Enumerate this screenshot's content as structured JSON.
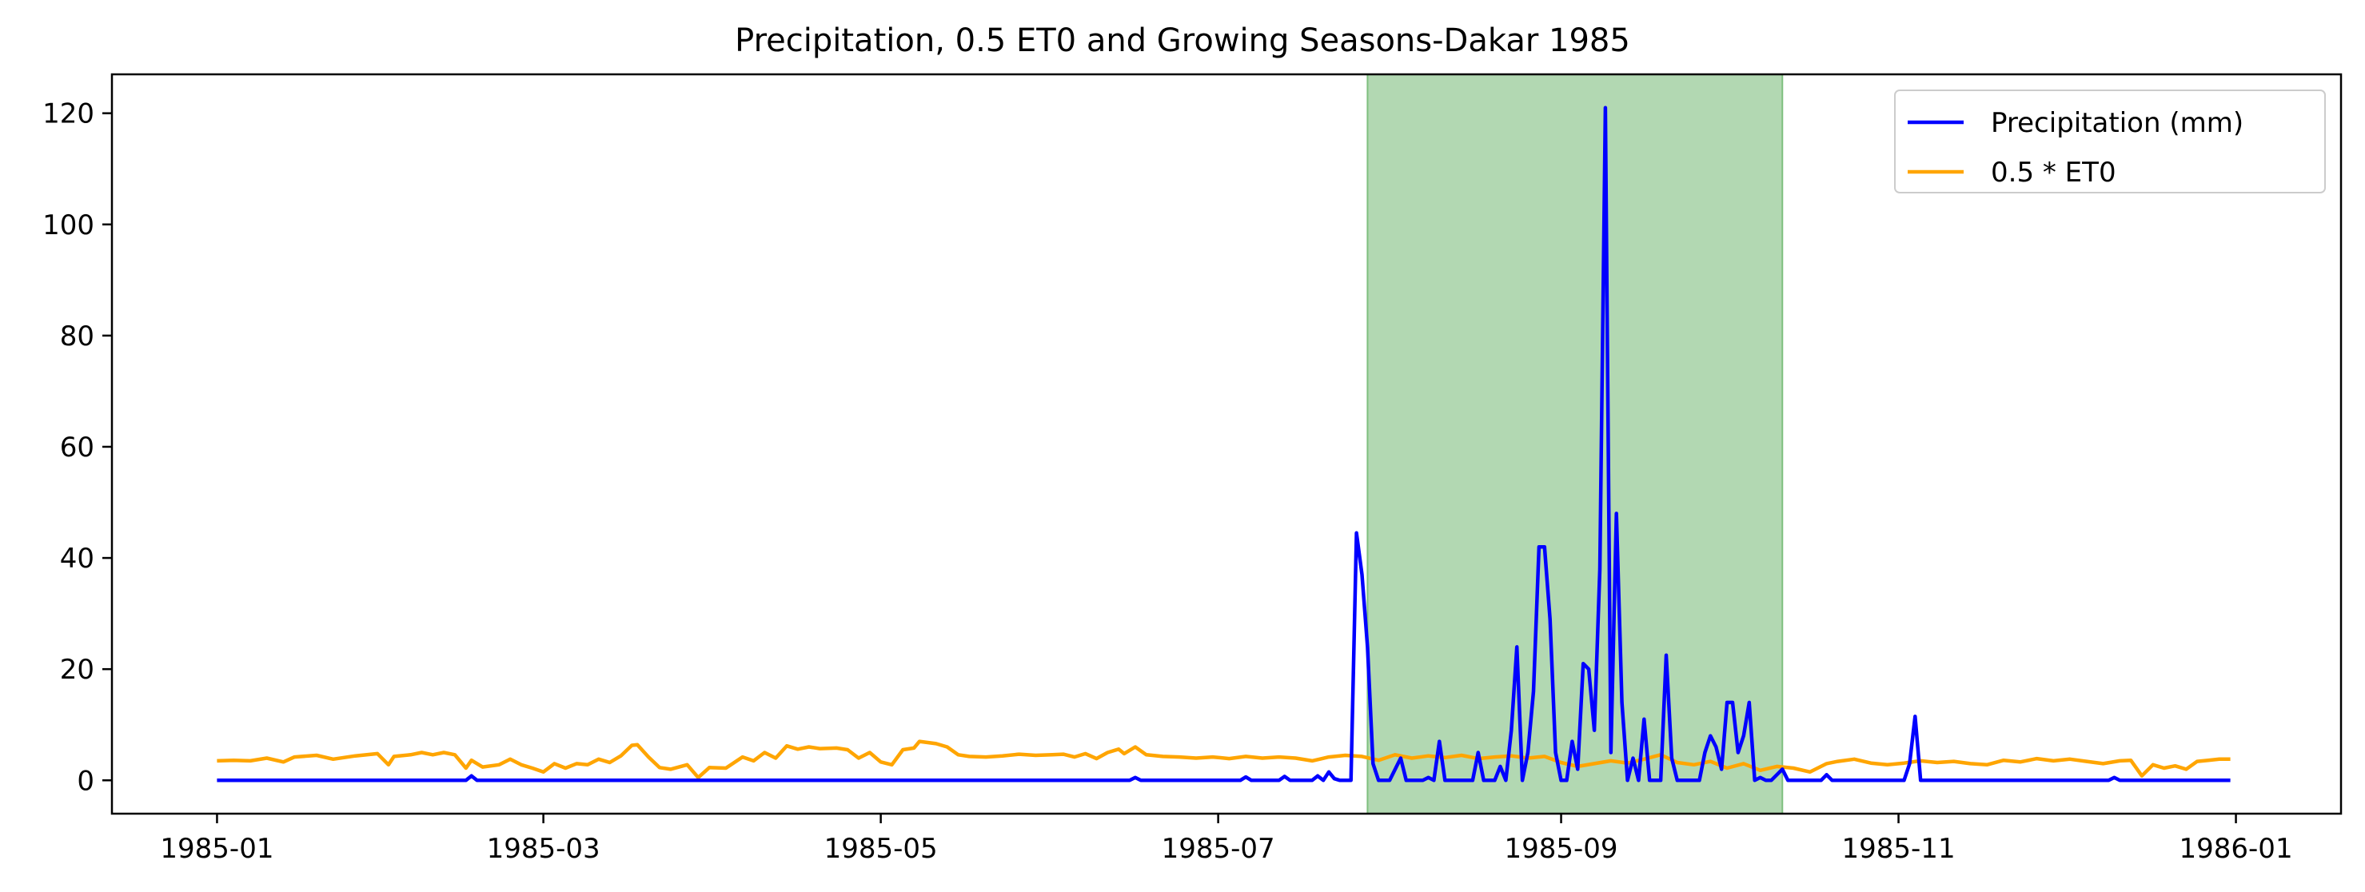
{
  "chart_data": {
    "type": "line",
    "title": "Precipitation, 0.5 ET0 and Growing Seasons-Dakar 1985",
    "xlabel": "",
    "ylabel": "",
    "x_range": [
      "1984-12-13",
      "1986-01-20"
    ],
    "ylim": [
      -6,
      127
    ],
    "x_ticks": [
      "1985-01",
      "1985-03",
      "1985-05",
      "1985-07",
      "1985-09",
      "1985-11",
      "1986-01"
    ],
    "y_ticks": [
      0,
      20,
      40,
      60,
      80,
      100,
      120
    ],
    "grid": false,
    "legend_position": "top-right",
    "growing_seasons": [
      {
        "start": "1985-07-28",
        "end": "1985-10-11",
        "color": "#b2d8b2",
        "edge_color": "#7fbf7f"
      }
    ],
    "series": [
      {
        "name": "Precipitation (mm)",
        "color": "#0000ff",
        "points": [
          [
            "1985-01-01",
            0
          ],
          [
            "1985-02-15",
            0
          ],
          [
            "1985-02-16",
            0.8
          ],
          [
            "1985-02-17",
            0
          ],
          [
            "1985-06-15",
            0
          ],
          [
            "1985-06-16",
            0.5
          ],
          [
            "1985-06-17",
            0
          ],
          [
            "1985-07-05",
            0
          ],
          [
            "1985-07-06",
            0.6
          ],
          [
            "1985-07-07",
            0
          ],
          [
            "1985-07-12",
            0
          ],
          [
            "1985-07-13",
            0.7
          ],
          [
            "1985-07-14",
            0
          ],
          [
            "1985-07-18",
            0
          ],
          [
            "1985-07-19",
            0.8
          ],
          [
            "1985-07-20",
            0
          ],
          [
            "1985-07-21",
            1.5
          ],
          [
            "1985-07-22",
            0.3
          ],
          [
            "1985-07-23",
            0
          ],
          [
            "1985-07-25",
            0
          ],
          [
            "1985-07-26",
            44.5
          ],
          [
            "1985-07-27",
            37
          ],
          [
            "1985-07-28",
            24
          ],
          [
            "1985-07-29",
            3
          ],
          [
            "1985-07-30",
            0
          ],
          [
            "1985-07-31",
            0
          ],
          [
            "1985-08-01",
            0
          ],
          [
            "1985-08-02",
            2
          ],
          [
            "1985-08-03",
            4
          ],
          [
            "1985-08-04",
            0
          ],
          [
            "1985-08-07",
            0
          ],
          [
            "1985-08-08",
            0.5
          ],
          [
            "1985-08-09",
            0
          ],
          [
            "1985-08-10",
            7
          ],
          [
            "1985-08-11",
            0
          ],
          [
            "1985-08-12",
            0
          ],
          [
            "1985-08-16",
            0
          ],
          [
            "1985-08-17",
            5
          ],
          [
            "1985-08-18",
            0
          ],
          [
            "1985-08-19",
            0
          ],
          [
            "1985-08-20",
            0
          ],
          [
            "1985-08-21",
            2.5
          ],
          [
            "1985-08-22",
            0
          ],
          [
            "1985-08-23",
            9
          ],
          [
            "1985-08-24",
            24
          ],
          [
            "1985-08-25",
            0
          ],
          [
            "1985-08-26",
            5
          ],
          [
            "1985-08-27",
            16
          ],
          [
            "1985-08-28",
            42
          ],
          [
            "1985-08-29",
            42
          ],
          [
            "1985-08-30",
            29
          ],
          [
            "1985-08-31",
            5
          ],
          [
            "1985-09-01",
            0
          ],
          [
            "1985-09-02",
            0
          ],
          [
            "1985-09-03",
            7
          ],
          [
            "1985-09-04",
            2
          ],
          [
            "1985-09-05",
            21
          ],
          [
            "1985-09-06",
            20
          ],
          [
            "1985-09-07",
            9
          ],
          [
            "1985-09-08",
            38
          ],
          [
            "1985-09-09",
            121
          ],
          [
            "1985-09-10",
            5
          ],
          [
            "1985-09-11",
            48
          ],
          [
            "1985-09-12",
            14
          ],
          [
            "1985-09-13",
            0
          ],
          [
            "1985-09-14",
            4
          ],
          [
            "1985-09-15",
            0
          ],
          [
            "1985-09-16",
            11
          ],
          [
            "1985-09-17",
            0
          ],
          [
            "1985-09-18",
            0
          ],
          [
            "1985-09-19",
            0
          ],
          [
            "1985-09-20",
            22.5
          ],
          [
            "1985-09-21",
            4
          ],
          [
            "1985-09-22",
            0
          ],
          [
            "1985-09-26",
            0
          ],
          [
            "1985-09-27",
            5
          ],
          [
            "1985-09-28",
            8
          ],
          [
            "1985-09-29",
            6
          ],
          [
            "1985-09-30",
            2
          ],
          [
            "1985-10-01",
            14
          ],
          [
            "1985-10-02",
            14
          ],
          [
            "1985-10-03",
            5
          ],
          [
            "1985-10-04",
            8
          ],
          [
            "1985-10-05",
            14
          ],
          [
            "1985-10-06",
            0
          ],
          [
            "1985-10-07",
            0.5
          ],
          [
            "1985-10-08",
            0
          ],
          [
            "1985-10-09",
            0
          ],
          [
            "1985-10-10",
            1
          ],
          [
            "1985-10-11",
            2
          ],
          [
            "1985-10-12",
            0
          ],
          [
            "1985-10-18",
            0
          ],
          [
            "1985-10-19",
            1
          ],
          [
            "1985-10-20",
            0
          ],
          [
            "1985-11-02",
            0
          ],
          [
            "1985-11-03",
            3
          ],
          [
            "1985-11-04",
            11.5
          ],
          [
            "1985-11-05",
            0
          ],
          [
            "1985-12-09",
            0
          ],
          [
            "1985-12-10",
            0.5
          ],
          [
            "1985-12-11",
            0
          ],
          [
            "1985-12-31",
            0
          ]
        ]
      },
      {
        "name": "0.5 * ET0",
        "color": "#ffa500",
        "points": [
          [
            "1985-01-01",
            3.5
          ],
          [
            "1985-01-04",
            3.6
          ],
          [
            "1985-01-07",
            3.5
          ],
          [
            "1985-01-10",
            4.0
          ],
          [
            "1985-01-13",
            3.3
          ],
          [
            "1985-01-15",
            4.2
          ],
          [
            "1985-01-19",
            4.5
          ],
          [
            "1985-01-22",
            3.8
          ],
          [
            "1985-01-26",
            4.4
          ],
          [
            "1985-01-30",
            4.8
          ],
          [
            "1985-02-01",
            2.8
          ],
          [
            "1985-02-02",
            4.3
          ],
          [
            "1985-02-05",
            4.6
          ],
          [
            "1985-02-07",
            5.0
          ],
          [
            "1985-02-09",
            4.6
          ],
          [
            "1985-02-11",
            5.0
          ],
          [
            "1985-02-13",
            4.6
          ],
          [
            "1985-02-15",
            2.2
          ],
          [
            "1985-02-16",
            3.6
          ],
          [
            "1985-02-18",
            2.4
          ],
          [
            "1985-02-21",
            2.8
          ],
          [
            "1985-02-23",
            3.8
          ],
          [
            "1985-02-25",
            2.8
          ],
          [
            "1985-02-27",
            2.2
          ],
          [
            "1985-03-01",
            1.5
          ],
          [
            "1985-03-03",
            3.0
          ],
          [
            "1985-03-05",
            2.2
          ],
          [
            "1985-03-07",
            3.0
          ],
          [
            "1985-03-09",
            2.8
          ],
          [
            "1985-03-11",
            3.8
          ],
          [
            "1985-03-13",
            3.2
          ],
          [
            "1985-03-15",
            4.4
          ],
          [
            "1985-03-17",
            6.3
          ],
          [
            "1985-03-18",
            6.4
          ],
          [
            "1985-03-20",
            4.2
          ],
          [
            "1985-03-22",
            2.3
          ],
          [
            "1985-03-24",
            2.0
          ],
          [
            "1985-03-27",
            2.8
          ],
          [
            "1985-03-29",
            0.5
          ],
          [
            "1985-03-31",
            2.3
          ],
          [
            "1985-04-03",
            2.2
          ],
          [
            "1985-04-06",
            4.2
          ],
          [
            "1985-04-08",
            3.5
          ],
          [
            "1985-04-10",
            5.0
          ],
          [
            "1985-04-12",
            4.0
          ],
          [
            "1985-04-14",
            6.2
          ],
          [
            "1985-04-16",
            5.6
          ],
          [
            "1985-04-18",
            6.0
          ],
          [
            "1985-04-20",
            5.7
          ],
          [
            "1985-04-23",
            5.8
          ],
          [
            "1985-04-25",
            5.5
          ],
          [
            "1985-04-27",
            4.0
          ],
          [
            "1985-04-29",
            5.0
          ],
          [
            "1985-05-01",
            3.3
          ],
          [
            "1985-05-03",
            2.8
          ],
          [
            "1985-05-05",
            5.5
          ],
          [
            "1985-05-07",
            5.8
          ],
          [
            "1985-05-08",
            7.0
          ],
          [
            "1985-05-11",
            6.6
          ],
          [
            "1985-05-13",
            6.0
          ],
          [
            "1985-05-15",
            4.6
          ],
          [
            "1985-05-17",
            4.3
          ],
          [
            "1985-05-20",
            4.2
          ],
          [
            "1985-05-23",
            4.4
          ],
          [
            "1985-05-26",
            4.7
          ],
          [
            "1985-05-29",
            4.5
          ],
          [
            "1985-06-01",
            4.6
          ],
          [
            "1985-06-03",
            4.7
          ],
          [
            "1985-06-05",
            4.2
          ],
          [
            "1985-06-07",
            4.8
          ],
          [
            "1985-06-09",
            3.9
          ],
          [
            "1985-06-11",
            5.0
          ],
          [
            "1985-06-13",
            5.6
          ],
          [
            "1985-06-14",
            4.8
          ],
          [
            "1985-06-16",
            6.0
          ],
          [
            "1985-06-18",
            4.6
          ],
          [
            "1985-06-21",
            4.3
          ],
          [
            "1985-06-24",
            4.2
          ],
          [
            "1985-06-27",
            4.0
          ],
          [
            "1985-06-30",
            4.2
          ],
          [
            "1985-07-03",
            3.9
          ],
          [
            "1985-07-06",
            4.3
          ],
          [
            "1985-07-09",
            4.0
          ],
          [
            "1985-07-12",
            4.2
          ],
          [
            "1985-07-15",
            4.0
          ],
          [
            "1985-07-18",
            3.5
          ],
          [
            "1985-07-21",
            4.2
          ],
          [
            "1985-07-24",
            4.5
          ],
          [
            "1985-07-27",
            4.3
          ],
          [
            "1985-07-30",
            3.6
          ],
          [
            "1985-08-02",
            4.6
          ],
          [
            "1985-08-05",
            4.0
          ],
          [
            "1985-08-08",
            4.4
          ],
          [
            "1985-08-11",
            4.1
          ],
          [
            "1985-08-14",
            4.5
          ],
          [
            "1985-08-17",
            3.9
          ],
          [
            "1985-08-20",
            4.2
          ],
          [
            "1985-08-23",
            4.4
          ],
          [
            "1985-08-26",
            4.0
          ],
          [
            "1985-08-29",
            4.3
          ],
          [
            "1985-09-01",
            3.2
          ],
          [
            "1985-09-04",
            2.5
          ],
          [
            "1985-09-07",
            3.0
          ],
          [
            "1985-09-10",
            3.5
          ],
          [
            "1985-09-13",
            3.1
          ],
          [
            "1985-09-16",
            3.8
          ],
          [
            "1985-09-19",
            4.6
          ],
          [
            "1985-09-22",
            3.2
          ],
          [
            "1985-09-25",
            2.8
          ],
          [
            "1985-09-28",
            3.4
          ],
          [
            "1985-10-01",
            2.2
          ],
          [
            "1985-10-04",
            3.0
          ],
          [
            "1985-10-07",
            1.8
          ],
          [
            "1985-10-10",
            2.5
          ],
          [
            "1985-10-13",
            2.2
          ],
          [
            "1985-10-16",
            1.5
          ],
          [
            "1985-10-19",
            3.0
          ],
          [
            "1985-10-21",
            3.4
          ],
          [
            "1985-10-24",
            3.8
          ],
          [
            "1985-10-27",
            3.1
          ],
          [
            "1985-10-30",
            2.8
          ],
          [
            "1985-11-02",
            3.1
          ],
          [
            "1985-11-05",
            3.5
          ],
          [
            "1985-11-08",
            3.2
          ],
          [
            "1985-11-11",
            3.4
          ],
          [
            "1985-11-14",
            3.0
          ],
          [
            "1985-11-17",
            2.8
          ],
          [
            "1985-11-20",
            3.6
          ],
          [
            "1985-11-23",
            3.3
          ],
          [
            "1985-11-26",
            3.9
          ],
          [
            "1985-11-29",
            3.5
          ],
          [
            "1985-12-02",
            3.8
          ],
          [
            "1985-12-05",
            3.4
          ],
          [
            "1985-12-08",
            3.0
          ],
          [
            "1985-12-11",
            3.5
          ],
          [
            "1985-12-13",
            3.6
          ],
          [
            "1985-12-15",
            0.8
          ],
          [
            "1985-12-17",
            2.8
          ],
          [
            "1985-12-19",
            2.2
          ],
          [
            "1985-12-21",
            2.6
          ],
          [
            "1985-12-23",
            2.0
          ],
          [
            "1985-12-25",
            3.4
          ],
          [
            "1985-12-27",
            3.6
          ],
          [
            "1985-12-29",
            3.8
          ],
          [
            "1985-12-31",
            3.8
          ]
        ]
      }
    ]
  }
}
